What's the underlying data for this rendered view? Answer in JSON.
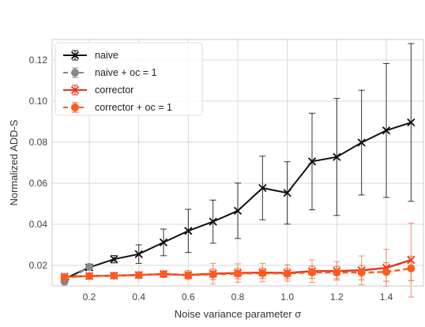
{
  "chart_data": {
    "type": "line",
    "xlabel": "Noise variance parameter σ",
    "ylabel": "Normalized ADD-S",
    "xlim": [
      0.05,
      1.55
    ],
    "ylim": [
      0.01,
      0.13
    ],
    "x_ticks": [
      0.2,
      0.4,
      0.6,
      0.8,
      1.0,
      1.2,
      1.4
    ],
    "x_tick_labels": [
      "0.2",
      "0.4",
      "0.6",
      "0.8",
      "1.0",
      "1.2",
      "1.4"
    ],
    "y_ticks": [
      0.02,
      0.04,
      0.06,
      0.08,
      0.1,
      0.12
    ],
    "y_tick_labels": [
      "0.02",
      "0.04",
      "0.06",
      "0.08",
      "0.10",
      "0.12"
    ],
    "grid": true,
    "legend_position": "upper-left",
    "x": [
      0.1,
      0.2,
      0.3,
      0.4,
      0.5,
      0.6,
      0.7,
      0.8,
      0.9,
      1.0,
      1.1,
      1.2,
      1.3,
      1.4,
      1.5
    ],
    "series": [
      {
        "name": "naive",
        "color": "#111111",
        "marker": "x",
        "linestyle": "solid",
        "x": [
          0.1,
          0.2,
          0.3,
          0.4,
          0.5,
          0.6,
          0.7,
          0.8,
          0.9,
          1.0,
          1.1,
          1.2,
          1.3,
          1.4,
          1.5
        ],
        "values": [
          0.0135,
          0.019,
          0.023,
          0.0255,
          0.0312,
          0.0368,
          0.0413,
          0.0466,
          0.0577,
          0.0553,
          0.0706,
          0.0728,
          0.0798,
          0.0857,
          0.0896
        ],
        "err": [
          0.0005,
          0.0008,
          0.0018,
          0.0045,
          0.0065,
          0.0105,
          0.0105,
          0.0135,
          0.0155,
          0.0152,
          0.0235,
          0.0285,
          0.0255,
          0.0326,
          0.0384
        ]
      },
      {
        "name": "naive + oc = 1",
        "color": "#888888",
        "marker": "o",
        "linestyle": "dashed",
        "x": [
          0.1,
          0.2
        ],
        "values": [
          0.012,
          0.0193
        ],
        "err": [
          0.0005,
          0.0005
        ]
      },
      {
        "name": "corrector",
        "color": "#e8351a",
        "marker": "x",
        "linestyle": "solid",
        "x": [
          0.1,
          0.2,
          0.3,
          0.4,
          0.5,
          0.6,
          0.7,
          0.8,
          0.9,
          1.0,
          1.1,
          1.2,
          1.3,
          1.4,
          1.5
        ],
        "values": [
          0.0145,
          0.0148,
          0.015,
          0.0153,
          0.0158,
          0.0153,
          0.016,
          0.0163,
          0.0165,
          0.0163,
          0.0172,
          0.0173,
          0.0176,
          0.0188,
          0.0226
        ],
        "err": [
          0.0005,
          0.0007,
          0.0008,
          0.001,
          0.0013,
          0.0022,
          0.005,
          0.0045,
          0.0045,
          0.004,
          0.0055,
          0.0045,
          0.007,
          0.009,
          0.018
        ]
      },
      {
        "name": "corrector + oc = 1",
        "color": "#ff5a1f",
        "marker": "o",
        "linestyle": "dashed",
        "x": [
          0.1,
          0.2,
          0.3,
          0.4,
          0.5,
          0.6,
          0.7,
          0.8,
          0.9,
          1.0,
          1.1,
          1.2,
          1.3,
          1.4,
          1.5
        ],
        "values": [
          0.0143,
          0.0148,
          0.015,
          0.0153,
          0.0157,
          0.0152,
          0.0156,
          0.016,
          0.0162,
          0.016,
          0.0166,
          0.0165,
          0.0165,
          0.0168,
          0.0185
        ],
        "err": [
          0.0005,
          0.0007,
          0.0008,
          0.0009,
          0.001,
          0.0015,
          0.0025,
          0.0025,
          0.0025,
          0.0025,
          0.003,
          0.003,
          0.0035,
          0.0045,
          0.006
        ]
      }
    ]
  }
}
